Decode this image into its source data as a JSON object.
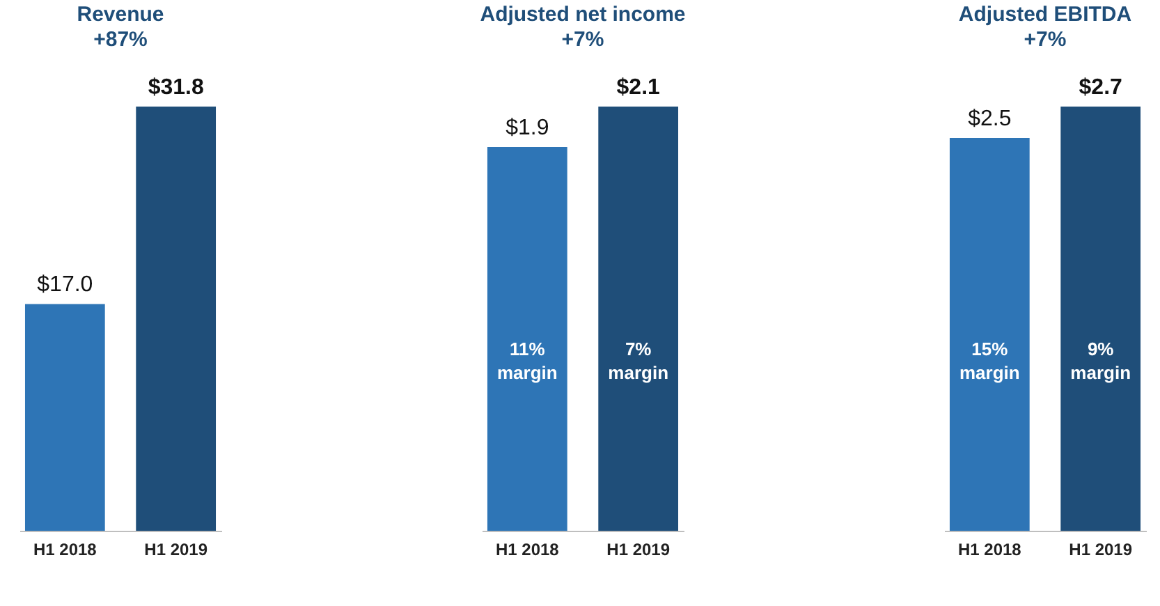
{
  "chart_data": [
    {
      "type": "bar",
      "title": "Revenue",
      "subtitle": "+87%",
      "categories": [
        "H1 2018",
        "H1 2019"
      ],
      "values": [
        17.0,
        31.8
      ],
      "colors": [
        "#2e75b6",
        "#1f4e79"
      ],
      "value_labels": [
        "$17.0",
        "$31.8"
      ]
    },
    {
      "type": "bar",
      "title": "Adjusted net income",
      "subtitle": "+7%",
      "categories": [
        "H1 2018",
        "H1 2019"
      ],
      "values": [
        1.9,
        2.1
      ],
      "colors": [
        "#2e75b6",
        "#1f4e79"
      ],
      "value_labels": [
        "$1.9",
        "$2.1"
      ],
      "annotations": [
        "11% margin",
        "7% margin"
      ]
    },
    {
      "type": "bar",
      "title": "Adjusted EBITDA",
      "subtitle": "+7%",
      "categories": [
        "H1 2018",
        "H1 2019"
      ],
      "values": [
        2.5,
        2.7
      ],
      "colors": [
        "#2e75b6",
        "#1f4e79"
      ],
      "value_labels": [
        "$2.5",
        "$2.7"
      ],
      "annotations": [
        "15% margin",
        "9% margin"
      ]
    }
  ]
}
